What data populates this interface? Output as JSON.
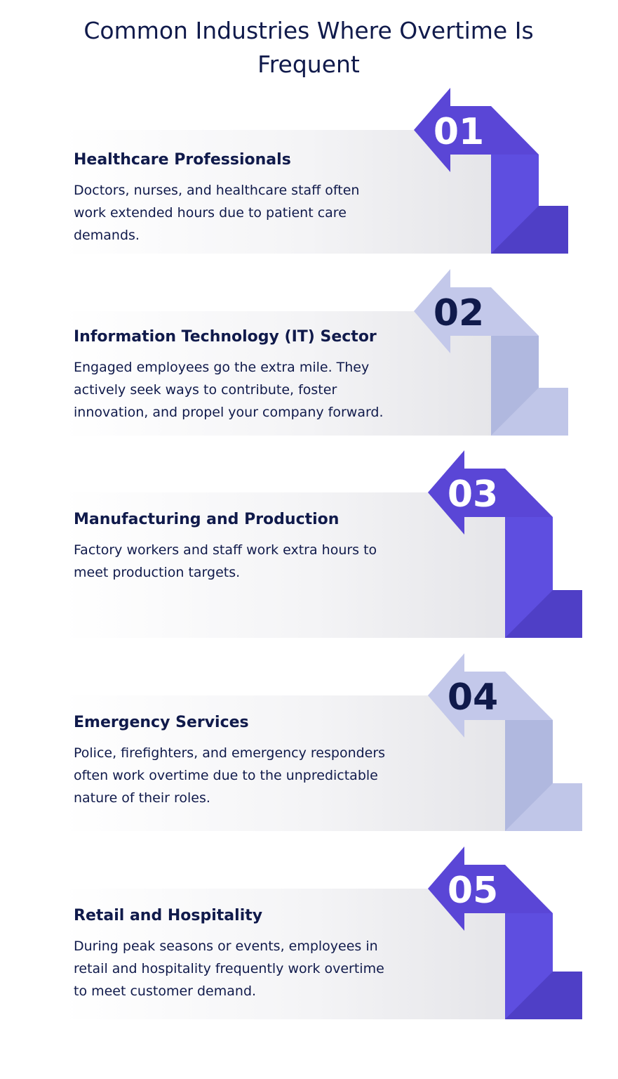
{
  "title": "Common Industries Where Overtime Is Frequent",
  "colors": {
    "dark_arrow": "#5a46d6",
    "dark_block": "#5e4ee0",
    "light_arrow": "#c3c8ea",
    "light_block": "#b0b8df",
    "text": "#101a4b",
    "num_on_dark": "#ffffff",
    "num_on_light": "#101a4b"
  },
  "steps": [
    {
      "number": "01",
      "theme": "dark",
      "title": "Healthcare Professionals",
      "desc_lines": [
        "Doctors, nurses, and healthcare staff often",
        "work extended hours due to patient care",
        "demands."
      ]
    },
    {
      "number": "02",
      "theme": "light",
      "title": "Information Technology (IT) Sector",
      "desc_lines": [
        "Engaged employees go the extra mile. They",
        "actively seek ways to contribute, foster",
        "innovation, and propel your company forward."
      ]
    },
    {
      "number": "03",
      "theme": "dark",
      "title": "Manufacturing and Production",
      "desc_lines": [
        "Factory workers and staff work extra hours to",
        "meet production targets."
      ]
    },
    {
      "number": "04",
      "theme": "light",
      "title": "Emergency Services",
      "desc_lines": [
        "Police, firefighters, and emergency responders",
        "often work overtime due to the unpredictable",
        "nature of their roles."
      ]
    },
    {
      "number": "05",
      "theme": "dark",
      "title": "Retail and Hospitality",
      "desc_lines": [
        "During peak seasons or events, employees in",
        "retail and hospitality frequently work overtime",
        "to meet customer demand."
      ]
    }
  ]
}
